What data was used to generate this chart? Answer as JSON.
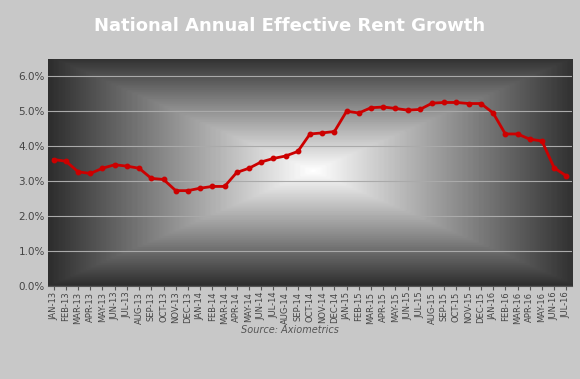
{
  "title": "National Annual Effective Rent Growth",
  "title_bg_color": "#1e4d8c",
  "title_text_color": "#ffffff",
  "line_color": "#cc0000",
  "marker_color": "#cc0000",
  "bg_color": "#c8c8c8",
  "plot_bg_light": "#efefef",
  "plot_bg_dark": "#d0d0d0",
  "grid_color": "#aaaaaa",
  "source_text": "Source: Axiometrics",
  "labels": [
    "JAN-13",
    "FEB-13",
    "MAR-13",
    "APR-13",
    "MAY-13",
    "JUN-13",
    "JUL-13",
    "AUG-13",
    "SEP-13",
    "OCT-13",
    "NOV-13",
    "DEC-13",
    "JAN-14",
    "FEB-14",
    "MAR-14",
    "APR-14",
    "MAY-14",
    "JUN-14",
    "JUL-14",
    "AUG-14",
    "SEP-14",
    "OCT-14",
    "NOV-14",
    "DEC-14",
    "JAN-15",
    "FEB-15",
    "MAR-15",
    "APR-15",
    "MAY-15",
    "JUN-15",
    "JUL-15",
    "AUG-15",
    "SEP-15",
    "OCT-15",
    "NOV-15",
    "DEC-15",
    "JAN-16",
    "FEB-16",
    "MAR-16",
    "APR-16",
    "MAY-16",
    "JUN-16",
    "JUL-16"
  ],
  "values": [
    3.62,
    3.57,
    3.27,
    3.22,
    3.37,
    3.47,
    3.43,
    3.37,
    3.08,
    3.05,
    2.73,
    2.73,
    2.8,
    2.85,
    2.85,
    3.25,
    3.37,
    3.55,
    3.65,
    3.72,
    3.85,
    4.35,
    4.38,
    4.42,
    5.0,
    4.95,
    5.1,
    5.12,
    5.08,
    5.03,
    5.05,
    5.23,
    5.25,
    5.25,
    5.22,
    5.22,
    4.95,
    4.35,
    4.35,
    4.2,
    4.15,
    3.38,
    3.15
  ],
  "ylim": [
    0.0,
    6.5
  ],
  "yticks": [
    0.0,
    1.0,
    2.0,
    3.0,
    4.0,
    5.0,
    6.0
  ],
  "ytick_labels": [
    "0.0%",
    "1.0%",
    "2.0%",
    "3.0%",
    "4.0%",
    "5.0%",
    "6.0%"
  ],
  "title_fontsize": 13,
  "tick_fontsize": 7.5
}
